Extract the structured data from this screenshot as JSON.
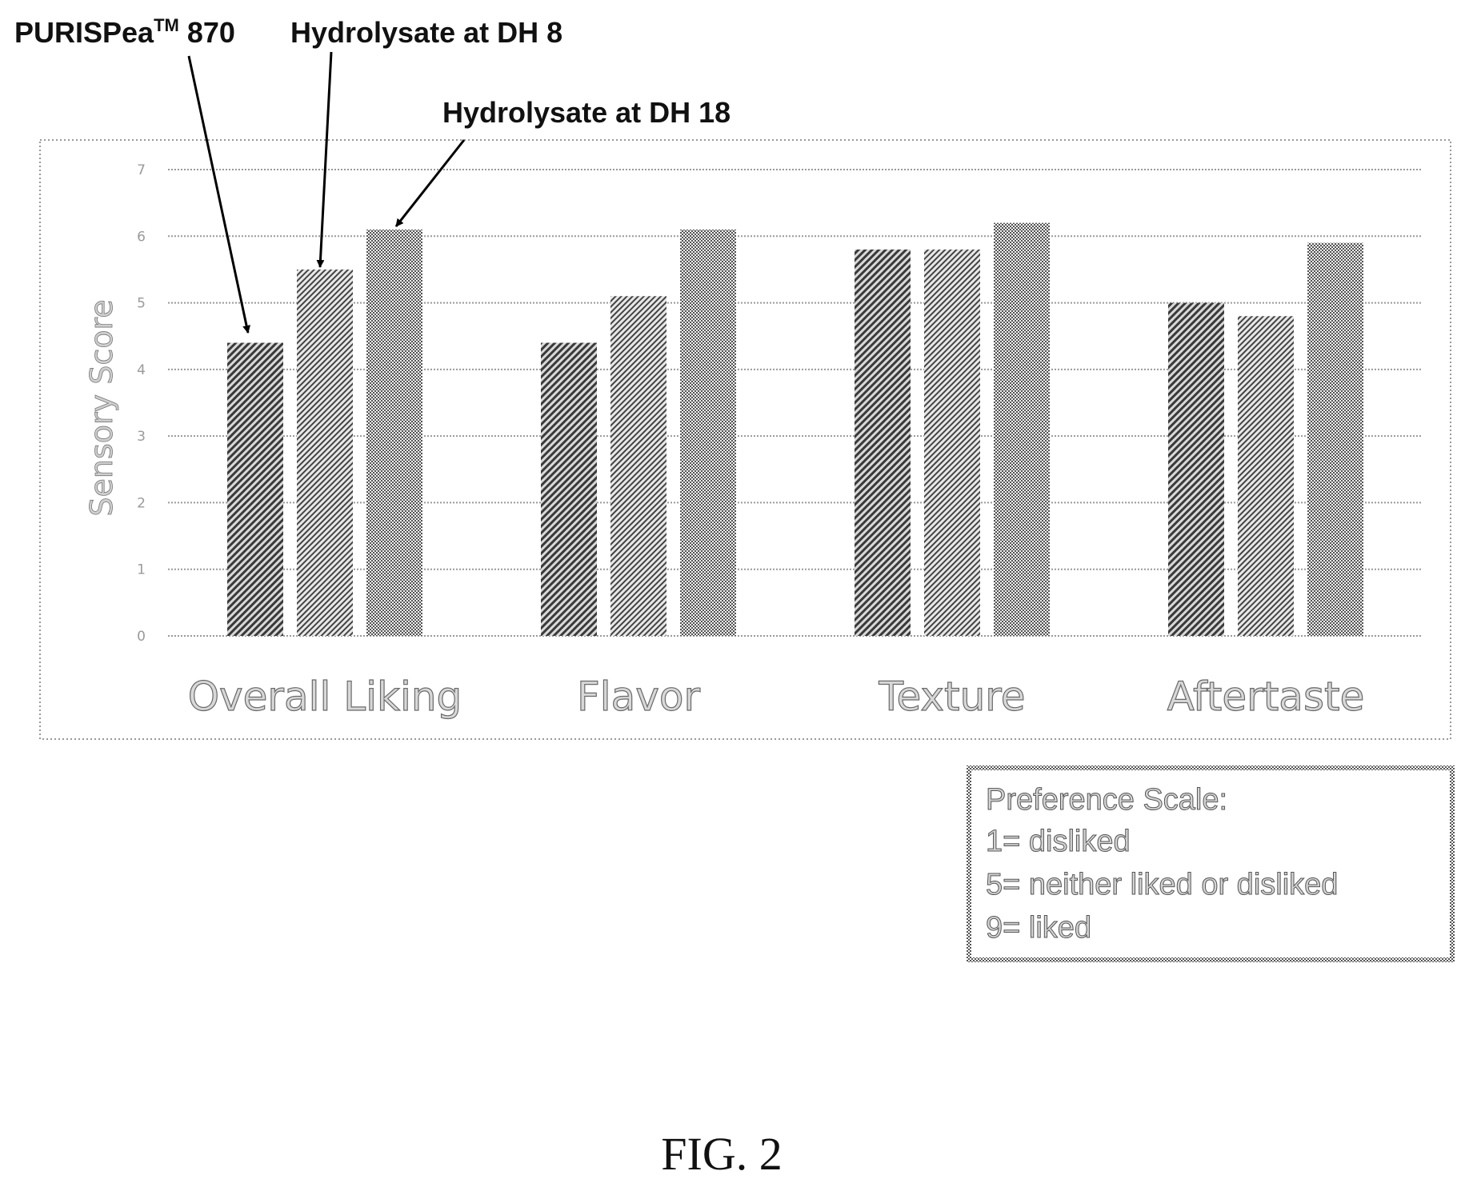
{
  "figure_caption": "FIG. 2",
  "callouts": {
    "purispea": "PURISPea",
    "purispea_tm": "TM",
    "purispea_num": " 870",
    "dh8": "Hydrolysate at DH 8",
    "dh18": "Hydrolysate at DH 18"
  },
  "preference_scale": {
    "title": "Preference Scale:",
    "lines": [
      "1= disliked",
      "5= neither liked or disliked",
      "9= liked"
    ]
  },
  "chart_data": {
    "type": "bar",
    "title": "",
    "xlabel": "",
    "ylabel": "Sensory Score",
    "ylim": [
      0,
      7
    ],
    "yticks": [
      "0",
      "1",
      "2",
      "3",
      "4",
      "5",
      "6",
      "7"
    ],
    "grid": true,
    "categories": [
      "Overall Liking",
      "Flavor",
      "Texture",
      "Aftertaste"
    ],
    "series": [
      {
        "name": "PURISPea™ 870",
        "values": [
          4.4,
          4.4,
          5.8,
          5.0
        ]
      },
      {
        "name": "Hydrolysate at DH 8",
        "values": [
          5.5,
          5.1,
          5.8,
          4.8
        ]
      },
      {
        "name": "Hydrolysate at DH 18",
        "values": [
          6.1,
          6.1,
          6.2,
          5.9
        ]
      }
    ]
  }
}
